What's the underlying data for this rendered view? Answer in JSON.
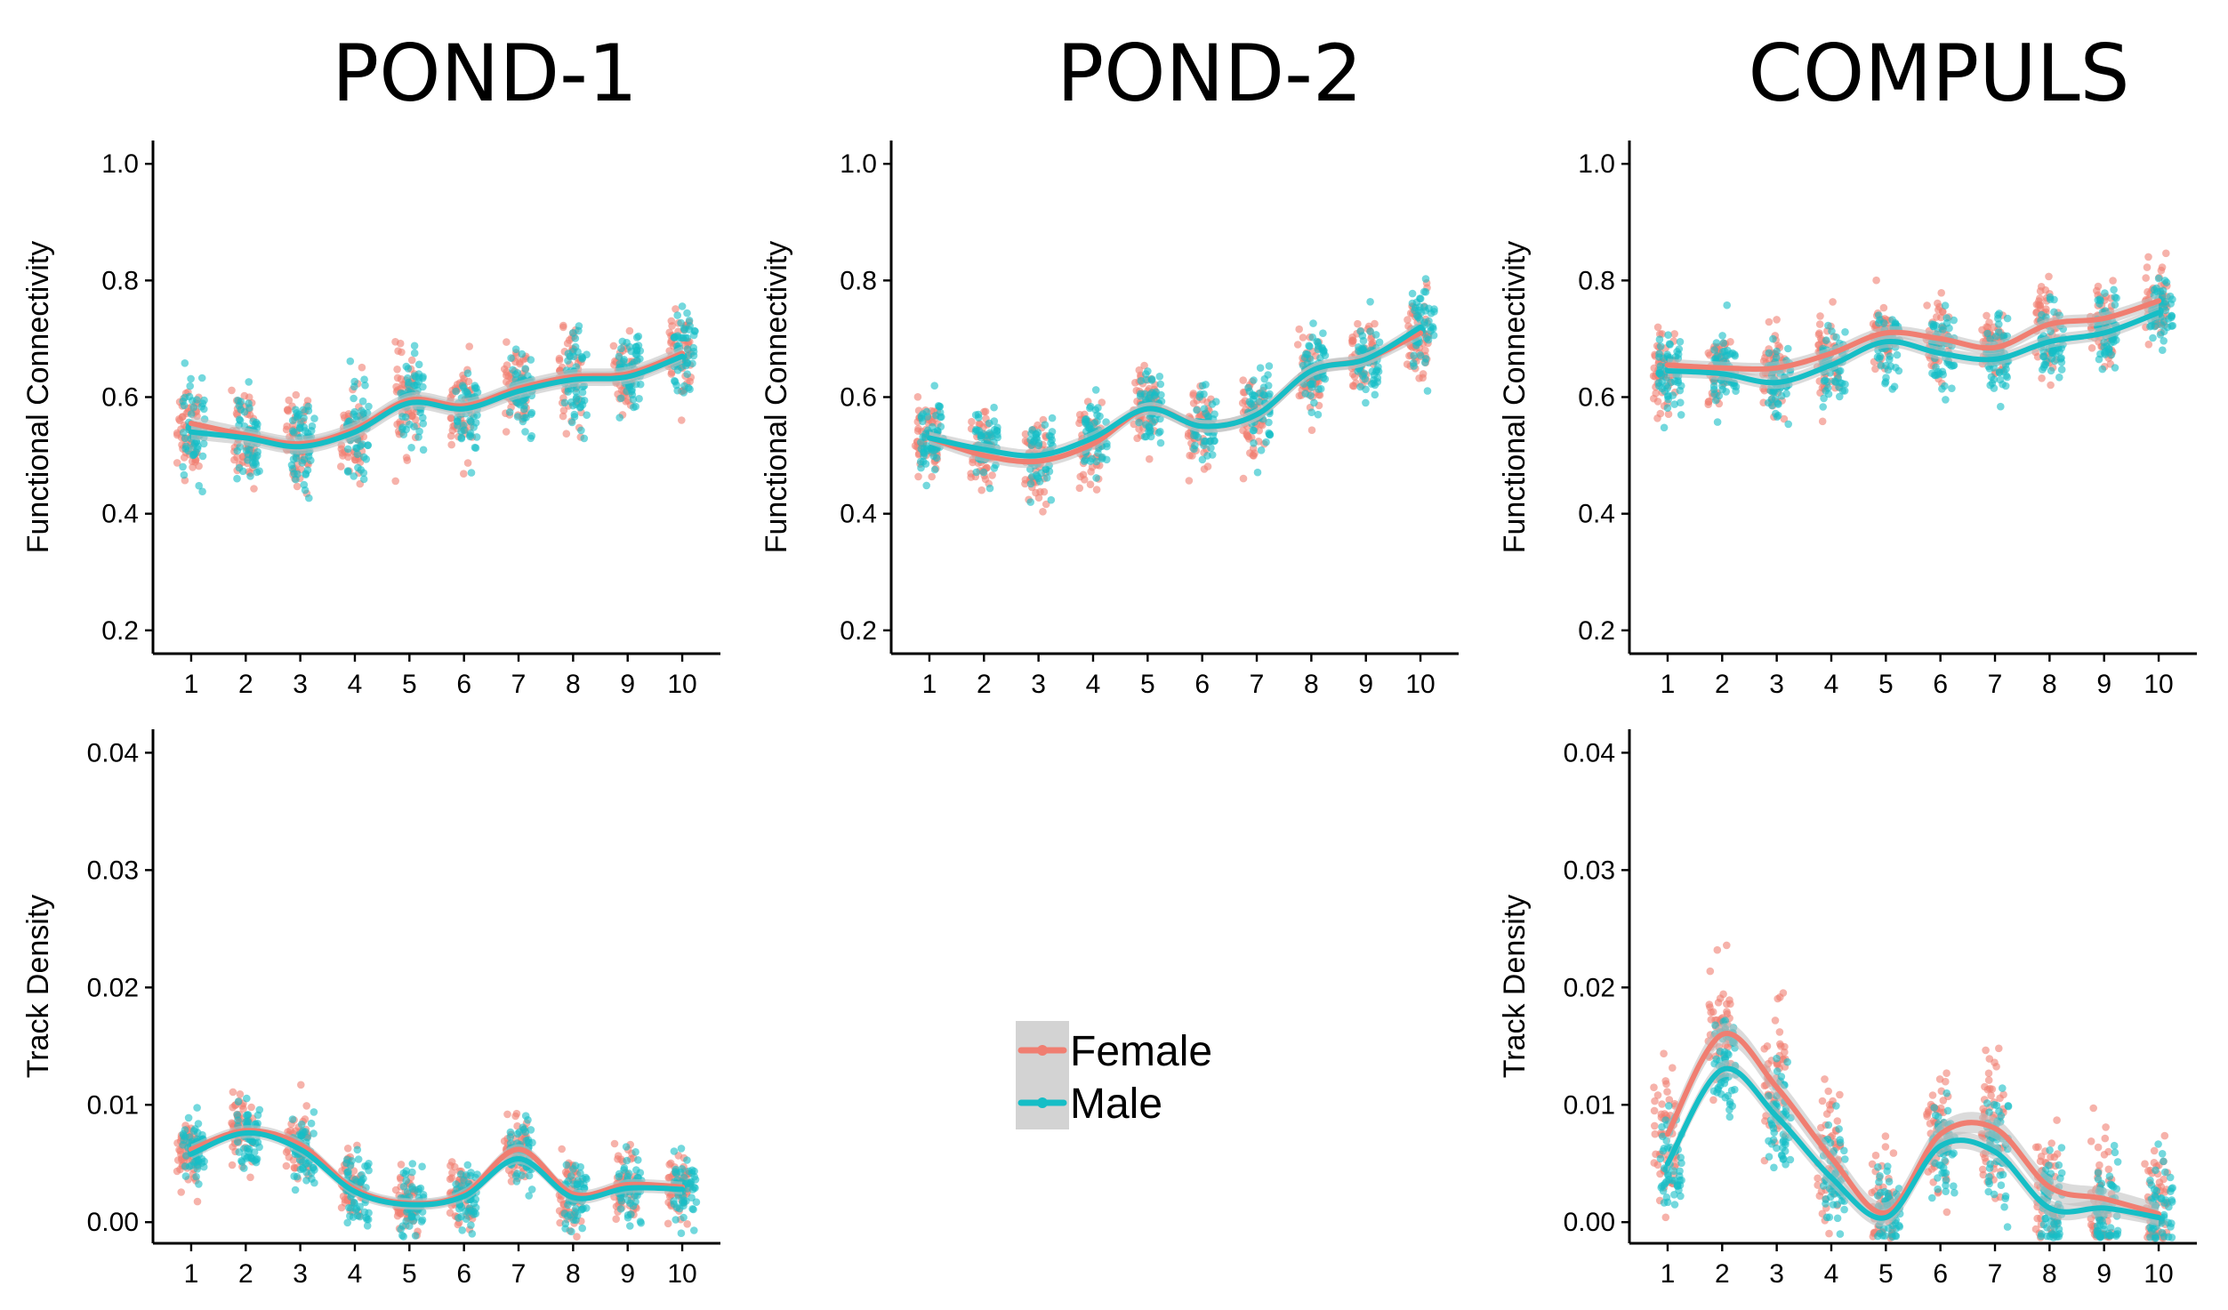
{
  "panel_titles": [
    "POND-1",
    "POND-2",
    "COMPULS"
  ],
  "legend": {
    "items": [
      {
        "label": "Female",
        "color": "#F07E71"
      },
      {
        "label": "Male",
        "color": "#16BEC6"
      }
    ]
  },
  "colors": {
    "female": "#F07E71",
    "male": "#16BEC6",
    "ribbon": "#BDBDBD"
  },
  "chart_data": [
    {
      "type": "scatter",
      "title": "POND-1",
      "xlabel": "",
      "ylabel": "Functional Connectivity",
      "x": [
        1,
        2,
        3,
        4,
        5,
        6,
        7,
        8,
        9,
        10
      ],
      "xlim": [
        0.3,
        10.7
      ],
      "ylim": [
        0.16,
        1.04
      ],
      "yticks": [
        0.2,
        0.4,
        0.6,
        0.8,
        1.0
      ],
      "ytick_labels": [
        "0.2",
        "0.4",
        "0.6",
        "0.8",
        "1.0"
      ],
      "grid": false,
      "series": [
        {
          "name": "Female",
          "smooth": [
            0.555,
            0.535,
            0.52,
            0.545,
            0.595,
            0.585,
            0.615,
            0.635,
            0.64,
            0.675
          ],
          "mean": [
            0.55,
            0.53,
            0.52,
            0.54,
            0.59,
            0.58,
            0.61,
            0.63,
            0.64,
            0.67
          ],
          "spread": 0.07
        },
        {
          "name": "Male",
          "smooth": [
            0.54,
            0.53,
            0.515,
            0.54,
            0.59,
            0.58,
            0.61,
            0.63,
            0.635,
            0.67
          ],
          "mean": [
            0.54,
            0.53,
            0.52,
            0.54,
            0.59,
            0.58,
            0.61,
            0.63,
            0.635,
            0.67
          ],
          "spread": 0.07
        }
      ]
    },
    {
      "type": "scatter",
      "title": "POND-2",
      "xlabel": "",
      "ylabel": "Functional Connectivity",
      "x": [
        1,
        2,
        3,
        4,
        5,
        6,
        7,
        8,
        9,
        10
      ],
      "xlim": [
        0.3,
        10.7
      ],
      "ylim": [
        0.16,
        1.04
      ],
      "yticks": [
        0.2,
        0.4,
        0.6,
        0.8,
        1.0
      ],
      "ytick_labels": [
        "0.2",
        "0.4",
        "0.6",
        "0.8",
        "1.0"
      ],
      "grid": false,
      "series": [
        {
          "name": "Female",
          "smooth": [
            0.53,
            0.5,
            0.49,
            0.52,
            0.58,
            0.55,
            0.57,
            0.645,
            0.665,
            0.71
          ],
          "mean": [
            0.53,
            0.5,
            0.49,
            0.52,
            0.58,
            0.55,
            0.57,
            0.64,
            0.66,
            0.71
          ],
          "spread": 0.06
        },
        {
          "name": "Male",
          "smooth": [
            0.53,
            0.51,
            0.5,
            0.53,
            0.58,
            0.55,
            0.57,
            0.645,
            0.665,
            0.72
          ],
          "mean": [
            0.53,
            0.51,
            0.5,
            0.53,
            0.58,
            0.55,
            0.57,
            0.64,
            0.66,
            0.72
          ],
          "spread": 0.06
        }
      ]
    },
    {
      "type": "scatter",
      "title": "COMPULS",
      "xlabel": "",
      "ylabel": "Functional Connectivity",
      "x": [
        1,
        2,
        3,
        4,
        5,
        6,
        7,
        8,
        9,
        10
      ],
      "xlim": [
        0.3,
        10.7
      ],
      "ylim": [
        0.16,
        1.04
      ],
      "yticks": [
        0.2,
        0.4,
        0.6,
        0.8,
        1.0
      ],
      "ytick_labels": [
        "0.2",
        "0.4",
        "0.6",
        "0.8",
        "1.0"
      ],
      "grid": false,
      "series": [
        {
          "name": "Female",
          "smooth": [
            0.655,
            0.65,
            0.65,
            0.675,
            0.71,
            0.7,
            0.685,
            0.725,
            0.735,
            0.765
          ],
          "mean": [
            0.65,
            0.65,
            0.65,
            0.67,
            0.71,
            0.7,
            0.69,
            0.72,
            0.73,
            0.76
          ],
          "spread": 0.06
        },
        {
          "name": "Male",
          "smooth": [
            0.645,
            0.64,
            0.625,
            0.655,
            0.695,
            0.675,
            0.665,
            0.695,
            0.71,
            0.745
          ],
          "mean": [
            0.64,
            0.64,
            0.625,
            0.655,
            0.69,
            0.675,
            0.665,
            0.695,
            0.71,
            0.745
          ],
          "spread": 0.06
        }
      ]
    },
    {
      "type": "scatter",
      "title": "POND-1",
      "xlabel": "",
      "ylabel": "Track Density",
      "x": [
        1,
        2,
        3,
        4,
        5,
        6,
        7,
        8,
        9,
        10
      ],
      "xlim": [
        0.3,
        10.7
      ],
      "ylim": [
        -0.0018,
        0.042
      ],
      "yticks": [
        0.0,
        0.01,
        0.02,
        0.03,
        0.04
      ],
      "ytick_labels": [
        "0.00",
        "0.01",
        "0.02",
        "0.03",
        "0.04"
      ],
      "grid": false,
      "series": [
        {
          "name": "Female",
          "smooth": [
            0.0062,
            0.0078,
            0.0066,
            0.0028,
            0.0016,
            0.0024,
            0.0062,
            0.0024,
            0.0032,
            0.003
          ],
          "mean": [
            0.006,
            0.008,
            0.0065,
            0.003,
            0.0016,
            0.0025,
            0.006,
            0.0025,
            0.003,
            0.003
          ],
          "spread": 0.0025
        },
        {
          "name": "Male",
          "smooth": [
            0.0058,
            0.0076,
            0.0062,
            0.0026,
            0.0015,
            0.0022,
            0.0054,
            0.0021,
            0.0029,
            0.0028
          ],
          "mean": [
            0.0058,
            0.0076,
            0.0062,
            0.0026,
            0.0015,
            0.0022,
            0.0055,
            0.0021,
            0.0029,
            0.0028
          ],
          "spread": 0.0025
        }
      ]
    },
    {
      "type": "scatter",
      "title": "COMPULS",
      "xlabel": "",
      "ylabel": "Track Density",
      "x": [
        1,
        2,
        3,
        4,
        5,
        6,
        7,
        8,
        9,
        10
      ],
      "xlim": [
        0.3,
        10.7
      ],
      "ylim": [
        -0.0018,
        0.042
      ],
      "yticks": [
        0.0,
        0.01,
        0.02,
        0.03,
        0.04
      ],
      "ytick_labels": [
        "0.00",
        "0.01",
        "0.02",
        "0.03",
        "0.04"
      ],
      "grid": false,
      "series": [
        {
          "name": "Female",
          "smooth": [
            0.0075,
            0.016,
            0.0115,
            0.0055,
            0.0008,
            0.0075,
            0.008,
            0.003,
            0.002,
            0.0007
          ],
          "mean": [
            0.008,
            0.016,
            0.012,
            0.006,
            0.001,
            0.0075,
            0.008,
            0.003,
            0.002,
            0.0008
          ],
          "spread": 0.005
        },
        {
          "name": "Male",
          "smooth": [
            0.005,
            0.013,
            0.009,
            0.0038,
            0.0004,
            0.0065,
            0.006,
            0.0012,
            0.0012,
            0.0004
          ],
          "mean": [
            0.005,
            0.013,
            0.009,
            0.004,
            0.0005,
            0.0065,
            0.006,
            0.0015,
            0.0012,
            0.0005
          ],
          "spread": 0.004
        }
      ]
    }
  ]
}
